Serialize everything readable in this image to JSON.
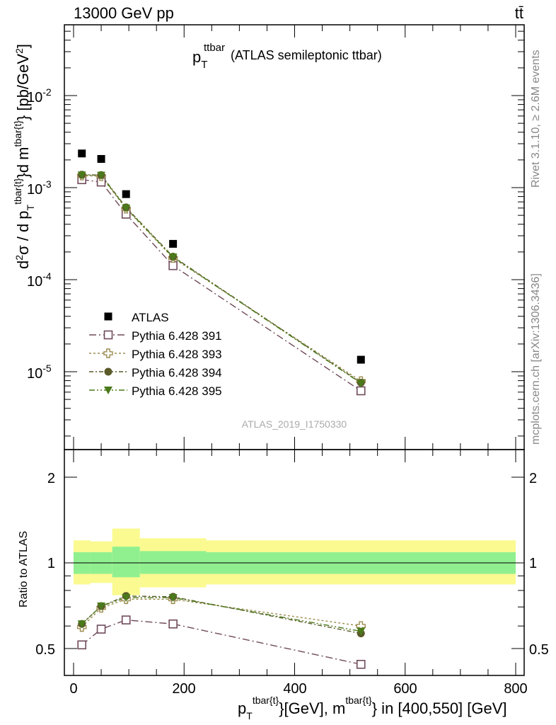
{
  "header": {
    "energy": "13000 GeV pp",
    "process": "tt̄"
  },
  "plot_title": {
    "symbol": "p",
    "sub": "T",
    "sup": "ttbar",
    "rest": "(ATLAS semileptonic ttbar)"
  },
  "side_labels": {
    "rivet": "Rivet 3.1.10, ≥ 2.6M events",
    "mcplots": "mcplots.cern.ch [arXiv:1306.3436]"
  },
  "analysis_id": "ATLAS_2019_I1750330",
  "axes": {
    "ylabel_main": "d²σ / d p_T^{tbar{t}}d m^{tbar{t}} [pb/GeV²]",
    "ylabel_ratio": "Ratio to ATLAS",
    "xlabel": "p_T^{tbar{t}}[GeV], m^{tbar{t}} in [400,550] [GeV]",
    "x_ticks": [
      "0",
      "200",
      "400",
      "600",
      "800"
    ],
    "y_ticks_main": [
      {
        "base": "10",
        "exp": "-2"
      },
      {
        "base": "10",
        "exp": "-3"
      },
      {
        "base": "10",
        "exp": "-4"
      },
      {
        "base": "10",
        "exp": "-5"
      }
    ],
    "y_ticks_ratio": [
      "2",
      "1",
      "0.5"
    ]
  },
  "legend": [
    {
      "label": "ATLAS"
    },
    {
      "label": "Pythia 6.428 391"
    },
    {
      "label": "Pythia 6.428 393"
    },
    {
      "label": "Pythia 6.428 394"
    },
    {
      "label": "Pythia 6.428 395"
    }
  ],
  "colors": {
    "data": "#000000",
    "p391": "#6f4a5a",
    "p393": "#9b8c4e",
    "p394": "#5a5a2a",
    "p395": "#4a7a1a",
    "band_inner": "#90f090",
    "band_outer": "#fafa90"
  },
  "chart_data": {
    "type": "scatter",
    "x_scale": "linear",
    "y_scale_main": "log",
    "xlim": [
      -20,
      805
    ],
    "ylim_main": [
      1.2e-06,
      0.08
    ],
    "ylim_ratio": [
      0.42,
      2.35
    ],
    "x": [
      15,
      50,
      95,
      180,
      520
    ],
    "series": [
      {
        "name": "ATLAS",
        "marker": "square-filled",
        "values": [
          0.00235,
          0.00205,
          0.00085,
          0.000245,
          1.35e-05
        ]
      },
      {
        "name": "Pythia 6.428 391",
        "marker": "square-open",
        "values": [
          0.00122,
          0.00115,
          0.000515,
          0.000142,
          6.2e-06
        ]
      },
      {
        "name": "Pythia 6.428 393",
        "marker": "cross-open",
        "values": [
          0.00135,
          0.00133,
          0.00059,
          0.000172,
          7.9e-06
        ]
      },
      {
        "name": "Pythia 6.428 394",
        "marker": "circle-filled",
        "values": [
          0.00138,
          0.00137,
          0.00061,
          0.000178,
          7.6e-06
        ]
      },
      {
        "name": "Pythia 6.428 395",
        "marker": "triangle-down-filled",
        "values": [
          0.00137,
          0.00136,
          0.0006,
          0.000176,
          7.5e-06
        ]
      }
    ],
    "ratio": {
      "reference": "ATLAS",
      "series": [
        {
          "name": "Pythia 6.428 391",
          "values": [
            0.515,
            0.585,
            0.63,
            0.61,
            0.44
          ]
        },
        {
          "name": "Pythia 6.428 393",
          "values": [
            0.595,
            0.695,
            0.745,
            0.745,
            0.6
          ]
        },
        {
          "name": "Pythia 6.428 394",
          "values": [
            0.61,
            0.705,
            0.765,
            0.76,
            0.565
          ]
        },
        {
          "name": "Pythia 6.428 395",
          "values": [
            0.61,
            0.705,
            0.755,
            0.755,
            0.575
          ]
        }
      ],
      "bands": [
        {
          "x0": 0,
          "x1": 30,
          "inner": [
            0.915,
            1.09
          ],
          "outer": [
            0.84,
            1.2
          ]
        },
        {
          "x0": 30,
          "x1": 70,
          "inner": [
            0.915,
            1.09
          ],
          "outer": [
            0.85,
            1.19
          ]
        },
        {
          "x0": 70,
          "x1": 120,
          "inner": [
            0.89,
            1.14
          ],
          "outer": [
            0.77,
            1.32
          ]
        },
        {
          "x0": 120,
          "x1": 240,
          "inner": [
            0.915,
            1.1
          ],
          "outer": [
            0.82,
            1.22
          ]
        },
        {
          "x0": 240,
          "x1": 800,
          "inner": [
            0.915,
            1.09
          ],
          "outer": [
            0.84,
            1.2
          ]
        }
      ]
    }
  }
}
